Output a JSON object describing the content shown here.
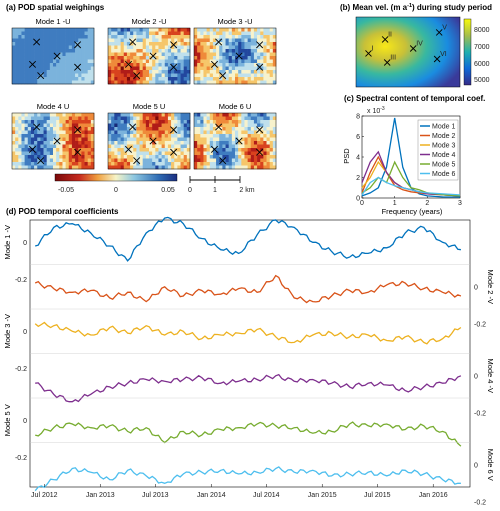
{
  "figure": {
    "panel_a": {
      "title": "(a) POD spatial weighings",
      "maps": [
        "Mode 1 -U",
        "Mode 2 -U",
        "Mode 3 -U",
        "Mode 4 U",
        "Mode 5 U",
        "Mode 6 U"
      ],
      "colorbar_ticks": [
        "-0.05",
        "0",
        "0.05"
      ],
      "scalebar_labels": [
        "0",
        "1",
        "2 km"
      ]
    },
    "panel_b": {
      "title_prefix": "(b) Mean vel. (m a",
      "title_sup": "-1",
      "title_suffix": ") during study period",
      "colorbar_ticks": [
        "8000",
        "7000",
        "6000",
        "5000"
      ],
      "site_labels": [
        "I",
        "II",
        "III",
        "IV",
        "V",
        "VI"
      ]
    },
    "panel_c": {
      "title": "(c) Spectral content of temporal coef.",
      "ylabel": "PSD",
      "xlabel": "Frequency (years)",
      "exponent_base": "x 10",
      "exponent_power": "-3",
      "xticks": [
        "0",
        "1",
        "2",
        "3"
      ],
      "yticks": [
        "0",
        "2",
        "4",
        "6",
        "8"
      ]
    },
    "panel_d": {
      "title": "(d) POD temporal coefficients",
      "row_labels": [
        "Mode 1 -V",
        "Mode 2 -V",
        "Mode 3 -V",
        "Mode 4 -V",
        "Mode 5 V",
        "Mode 6 V"
      ],
      "ytick_labels": [
        "0",
        "-0.2"
      ],
      "xticks": [
        "Jul 2012",
        "Jan 2013",
        "Jul 2013",
        "Jan 2014",
        "Jul 2014",
        "Jan 2015",
        "Jul 2015",
        "Jan 2016"
      ]
    }
  },
  "colors": {
    "mode1": "#0072bd",
    "mode2": "#d95319",
    "mode3": "#edb120",
    "mode4": "#7e2f8e",
    "mode5": "#77ac30",
    "mode6": "#4dbeee"
  },
  "chart_data": [
    {
      "type": "line",
      "title": "(c) Spectral content of temporal coef.",
      "xlabel": "Frequency (years)",
      "ylabel": "PSD",
      "y_scale_note": "x 10^-3",
      "xlim": [
        0,
        3
      ],
      "ylim": [
        0,
        8
      ],
      "legend_position": "top-right",
      "x": [
        0,
        0.25,
        0.5,
        0.75,
        1,
        1.25,
        1.5,
        1.75,
        2,
        2.5,
        3
      ],
      "series": [
        {
          "name": "Mode 1",
          "values": [
            0.2,
            0.5,
            1.0,
            3.0,
            7.8,
            3.0,
            1.0,
            0.4,
            0.2,
            0.1,
            0.1
          ]
        },
        {
          "name": "Mode 2",
          "values": [
            0.5,
            2.5,
            4.0,
            2.5,
            1.2,
            0.8,
            0.6,
            0.5,
            0.4,
            0.3,
            0.2
          ]
        },
        {
          "name": "Mode 3",
          "values": [
            1.0,
            2.0,
            3.5,
            2.5,
            1.5,
            1.0,
            0.8,
            0.6,
            0.5,
            0.3,
            0.2
          ]
        },
        {
          "name": "Mode 4",
          "values": [
            1.5,
            3.5,
            4.5,
            2.5,
            1.5,
            1.0,
            0.8,
            0.6,
            0.4,
            0.3,
            0.2
          ]
        },
        {
          "name": "Mode 5",
          "values": [
            0.5,
            1.0,
            2.0,
            1.5,
            3.5,
            2.0,
            1.0,
            0.8,
            0.5,
            0.3,
            0.2
          ]
        },
        {
          "name": "Mode 6",
          "values": [
            0.3,
            1.5,
            2.0,
            1.5,
            1.2,
            1.0,
            0.8,
            0.6,
            0.5,
            0.4,
            0.3
          ]
        }
      ]
    },
    {
      "type": "line",
      "title": "(d) POD temporal coefficients",
      "xlim": [
        "2012-05-15",
        "2016-05-01"
      ],
      "x": [
        "2012-06",
        "2012-08",
        "2012-10",
        "2012-12",
        "2013-02",
        "2013-04",
        "2013-06",
        "2013-08",
        "2013-10",
        "2013-12",
        "2014-02",
        "2014-04",
        "2014-06",
        "2014-08",
        "2014-10",
        "2014-12",
        "2015-02",
        "2015-04",
        "2015-06",
        "2015-08",
        "2015-10",
        "2015-12",
        "2016-02",
        "2016-04"
      ],
      "series": [
        {
          "name": "Mode 1 -V",
          "values": [
            -0.02,
            0.08,
            0.1,
            0.05,
            -0.02,
            -0.1,
            0.05,
            0.13,
            0.1,
            0.02,
            -0.04,
            -0.06,
            0.04,
            0.12,
            0.08,
            0.0,
            -0.05,
            -0.08,
            -0.06,
            -0.03,
            0.05,
            0.08,
            0.0,
            -0.04
          ]
        },
        {
          "name": "Mode 2 -V",
          "values": [
            0.02,
            -0.01,
            -0.03,
            -0.02,
            -0.06,
            -0.03,
            -0.08,
            0.0,
            -0.05,
            -0.02,
            -0.04,
            -0.01,
            -0.03,
            0.06,
            -0.06,
            -0.08,
            -0.05,
            -0.02,
            -0.03,
            0.01,
            0.02,
            -0.01,
            -0.03,
            -0.05
          ]
        },
        {
          "name": "Mode 3 -V",
          "values": [
            0.04,
            0.03,
            0.0,
            -0.02,
            0.02,
            -0.01,
            0.03,
            -0.02,
            0.0,
            -0.04,
            -0.02,
            -0.01,
            0.01,
            -0.03,
            -0.06,
            -0.02,
            -0.01,
            -0.03,
            -0.02,
            -0.05,
            -0.03,
            -0.06,
            -0.04,
            0.02
          ]
        },
        {
          "name": "Mode 4 -V",
          "values": [
            -0.04,
            -0.1,
            -0.14,
            -0.1,
            -0.06,
            -0.04,
            -0.02,
            -0.03,
            -0.02,
            -0.01,
            -0.04,
            -0.03,
            -0.02,
            0.0,
            -0.03,
            -0.02,
            -0.04,
            -0.06,
            -0.04,
            -0.05,
            -0.08,
            -0.06,
            -0.04,
            0.0
          ]
        },
        {
          "name": "Mode 5 V",
          "values": [
            -0.08,
            -0.04,
            -0.02,
            -0.04,
            -0.03,
            -0.06,
            -0.04,
            -0.12,
            -0.06,
            -0.08,
            -0.05,
            -0.04,
            -0.02,
            -0.03,
            -0.04,
            -0.07,
            -0.06,
            -0.02,
            -0.03,
            -0.02,
            -0.05,
            -0.03,
            -0.06,
            -0.14
          ]
        },
        {
          "name": "Mode 6 V",
          "values": [
            -0.14,
            -0.08,
            -0.02,
            -0.04,
            -0.08,
            -0.03,
            -0.06,
            -0.1,
            -0.05,
            -0.04,
            -0.03,
            -0.05,
            -0.04,
            -0.02,
            -0.04,
            -0.03,
            -0.06,
            -0.05,
            -0.04,
            -0.06,
            -0.03,
            -0.05,
            -0.08,
            -0.1
          ]
        }
      ]
    }
  ]
}
